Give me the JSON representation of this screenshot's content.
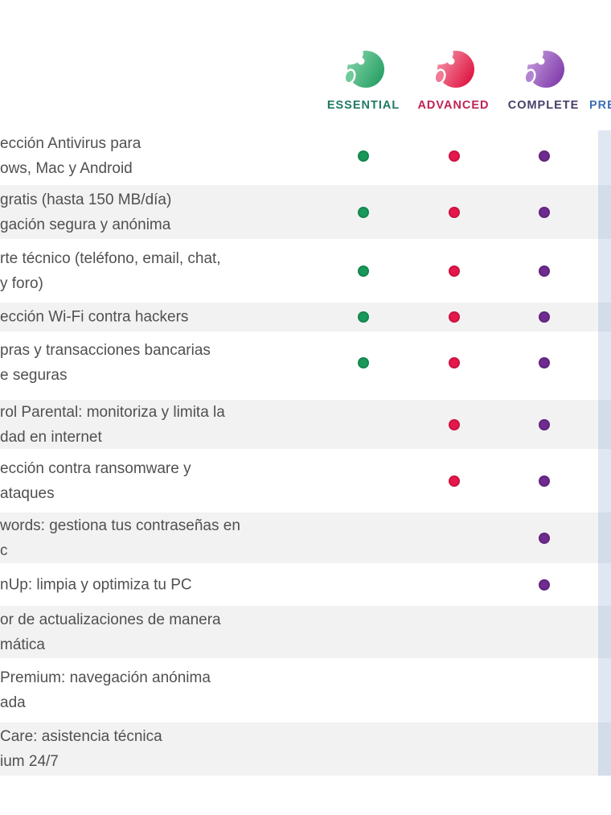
{
  "page": {
    "background": "#ffffff"
  },
  "header": {
    "plans": [
      {
        "name": "ESSENTIAL",
        "label_color": "#217a63",
        "logo_light": "#8fd8ae",
        "logo_mid": "#6fcb9c",
        "logo_dark": "#2aa268"
      },
      {
        "name": "ADVANCED",
        "label_color": "#c12353",
        "logo_light": "#f59fb1",
        "logo_mid": "#ef7b95",
        "logo_dark": "#e01a45"
      },
      {
        "name": "COMPLETE",
        "label_color": "#474069",
        "logo_light": "#c9a3e0",
        "logo_mid": "#b184d1",
        "logo_dark": "#8440ad"
      },
      {
        "name": "PREMIUM",
        "label_color": "#3b6fb6",
        "logo_light": "#aec9ec",
        "logo_mid": "#9cbbe4",
        "logo_dark": "#5d89c9"
      }
    ]
  },
  "table": {
    "row_colors": {
      "even": "#ffffff",
      "odd": "#f2f2f2"
    },
    "premium_band": {
      "base": "#dfe7f2",
      "shaded": "#d3dce9"
    },
    "dot_colors": {
      "essential": "#18995a",
      "advanced": "#e6174b",
      "complete": "#6f2b90"
    },
    "rows": [
      {
        "lines": [
          "ección Antivirus para",
          "ows, Mac y Android"
        ],
        "essential": true,
        "advanced": true,
        "complete": true
      },
      {
        "lines": [
          "gratis (hasta 150 MB/día)",
          "gación segura y anónima"
        ],
        "essential": true,
        "advanced": true,
        "complete": true
      },
      {
        "lines": [
          "rte técnico (teléfono, email, chat,",
          "y foro)"
        ],
        "essential": true,
        "advanced": true,
        "complete": true
      },
      {
        "lines": [
          "ección Wi-Fi contra hackers"
        ],
        "essential": true,
        "advanced": true,
        "complete": true
      },
      {
        "lines": [
          "pras y transacciones bancarias",
          "e seguras"
        ],
        "essential": true,
        "advanced": true,
        "complete": true
      },
      {
        "lines": [
          "rol Parental: monitoriza y limita la",
          "dad en internet"
        ],
        "essential": false,
        "advanced": true,
        "complete": true
      },
      {
        "lines": [
          "ección contra ransomware y",
          "ataques"
        ],
        "essential": false,
        "advanced": true,
        "complete": true
      },
      {
        "lines": [
          "words: gestiona tus contraseñas en",
          "c"
        ],
        "essential": false,
        "advanced": false,
        "complete": true
      },
      {
        "lines": [
          "nUp: limpia y optimiza tu PC"
        ],
        "essential": false,
        "advanced": false,
        "complete": true
      },
      {
        "lines": [
          "or de actualizaciones de manera",
          "mática"
        ],
        "essential": false,
        "advanced": false,
        "complete": false
      },
      {
        "lines": [
          "Premium: navegación anónima",
          "ada"
        ],
        "essential": false,
        "advanced": false,
        "complete": false
      },
      {
        "lines": [
          "Care: asistencia técnica",
          "ium 24/7"
        ],
        "essential": false,
        "advanced": false,
        "complete": false
      }
    ]
  }
}
